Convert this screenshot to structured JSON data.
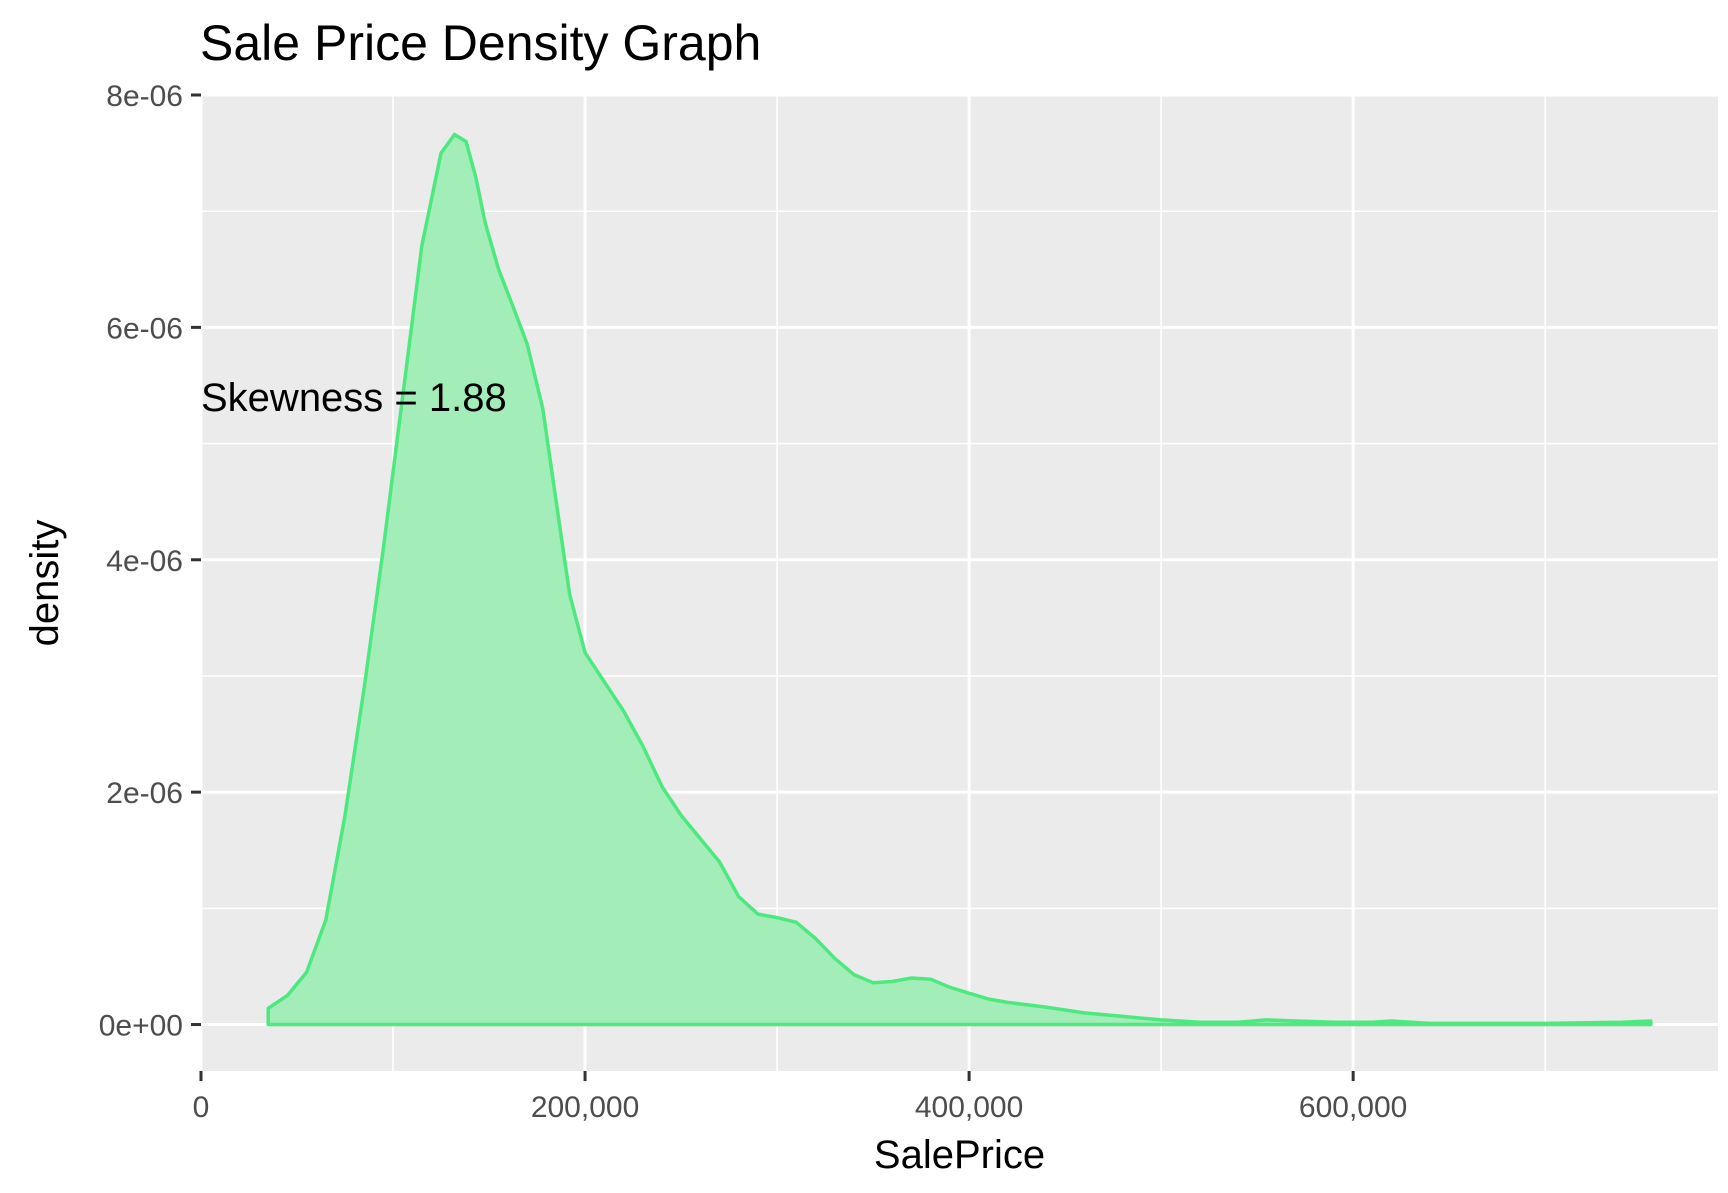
{
  "chart_data": {
    "type": "area",
    "title": "Sale Price Density Graph",
    "xlabel": "SalePrice",
    "ylabel": "density",
    "xlim": [
      0,
      790000
    ],
    "ylim": [
      -4e-07,
      8e-06
    ],
    "x_ticks": [
      {
        "value": 0,
        "label": "0"
      },
      {
        "value": 200000,
        "label": "200,000"
      },
      {
        "value": 400000,
        "label": "400,000"
      },
      {
        "value": 600000,
        "label": "600,000"
      }
    ],
    "y_ticks": [
      {
        "value": 0,
        "label": "0e+00"
      },
      {
        "value": 2e-06,
        "label": "2e-06"
      },
      {
        "value": 4e-06,
        "label": "4e-06"
      },
      {
        "value": 6e-06,
        "label": "6e-06"
      },
      {
        "value": 8e-06,
        "label": "8e-06"
      }
    ],
    "grid": true,
    "annotation": {
      "text": "Skewness =  1.88",
      "x": 0,
      "y": 5.4e-06
    },
    "colors": {
      "fill": "#a3edb9",
      "line": "#4de880",
      "panel": "#ebebeb",
      "grid": "#ffffff"
    },
    "series": [
      {
        "x": [
          35000,
          45000,
          55000,
          65000,
          75000,
          85000,
          95000,
          105000,
          115000,
          125000,
          132000,
          138000,
          143000,
          148000,
          155000,
          162000,
          170000,
          178000,
          185000,
          192000,
          200000,
          210000,
          220000,
          230000,
          240000,
          250000,
          260000,
          270000,
          280000,
          290000,
          300000,
          310000,
          320000,
          330000,
          340000,
          350000,
          360000,
          370000,
          380000,
          390000,
          400000,
          410000,
          420000,
          440000,
          460000,
          480000,
          500000,
          520000,
          540000,
          555000,
          570000,
          590000,
          610000,
          620000,
          640000,
          660000,
          700000,
          740000,
          755000
        ],
        "y": [
          1.4e-07,
          2.5e-07,
          4.5e-07,
          9e-07,
          1.8e-06,
          2.9e-06,
          4.1e-06,
          5.4e-06,
          6.7e-06,
          7.5e-06,
          7.66e-06,
          7.6e-06,
          7.3e-06,
          6.9e-06,
          6.5e-06,
          6.2e-06,
          5.85e-06,
          5.3e-06,
          4.5e-06,
          3.7e-06,
          3.2e-06,
          2.95e-06,
          2.7e-06,
          2.4e-06,
          2.05e-06,
          1.8e-06,
          1.6e-06,
          1.4e-06,
          1.1e-06,
          9.5e-07,
          9.2e-07,
          8.8e-07,
          7.4e-07,
          5.7e-07,
          4.3e-07,
          3.6e-07,
          3.7e-07,
          4e-07,
          3.9e-07,
          3.2e-07,
          2.7e-07,
          2.2e-07,
          1.9e-07,
          1.5e-07,
          1e-07,
          7e-08,
          4e-08,
          2e-08,
          2e-08,
          4e-08,
          3e-08,
          2e-08,
          2e-08,
          3e-08,
          1e-08,
          1e-08,
          1e-08,
          2e-08,
          3e-08
        ]
      }
    ]
  }
}
